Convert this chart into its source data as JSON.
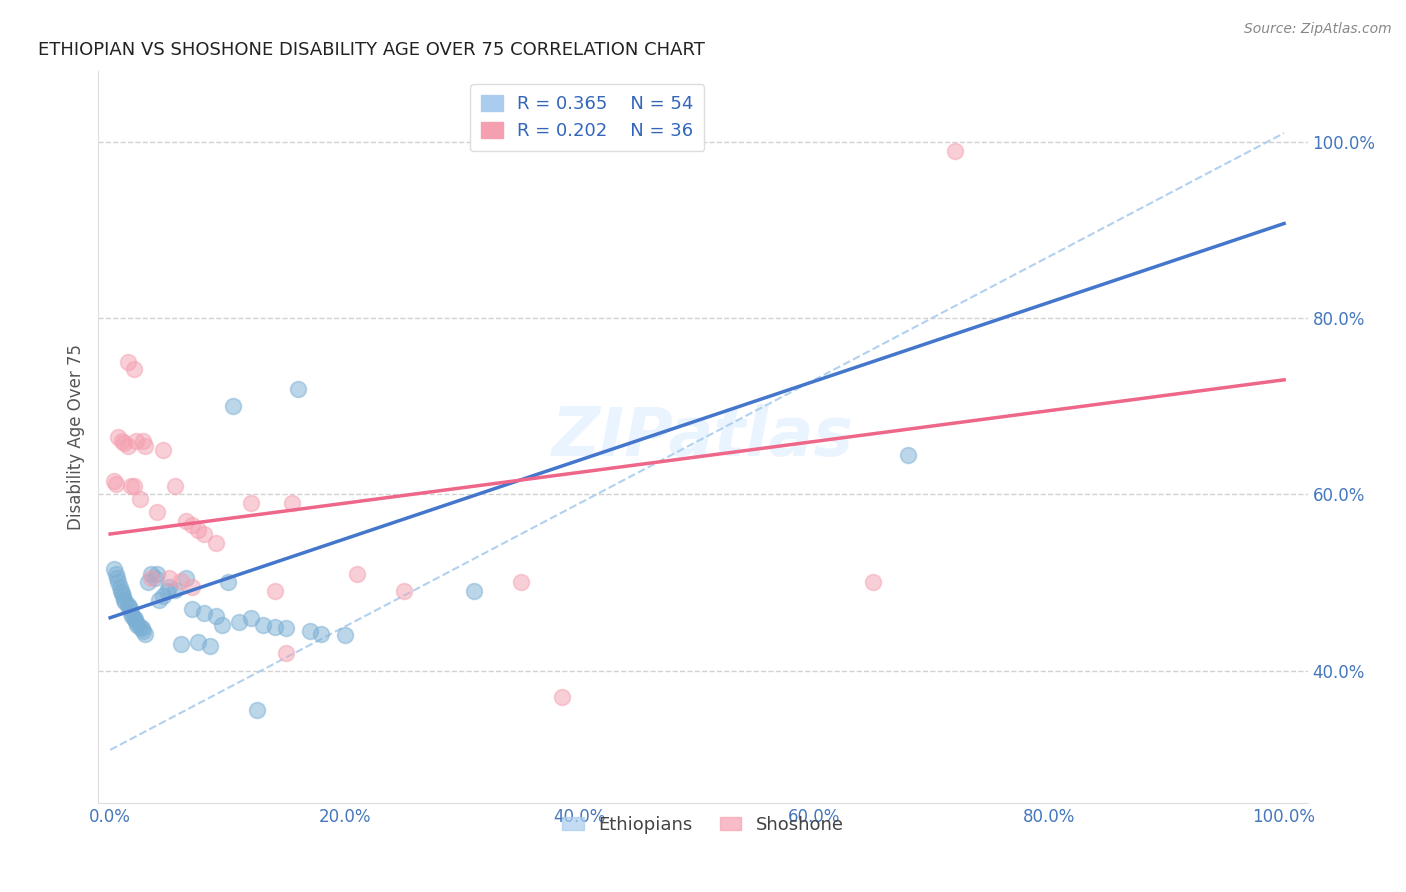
{
  "title": "ETHIOPIAN VS SHOSHONE DISABILITY AGE OVER 75 CORRELATION CHART",
  "source": "Source: ZipAtlas.com",
  "ylabel": "Disability Age Over 75",
  "legend_r1": "R = 0.365",
  "legend_n1": "N = 54",
  "legend_r2": "R = 0.202",
  "legend_n2": "N = 36",
  "blue_color": "#7BAFD4",
  "pink_color": "#F4A0B0",
  "blue_line_color": "#4477CC",
  "pink_line_color": "#EE6688",
  "dash_color": "#AACCEE",
  "xlim": [
    -0.01,
    1.02
  ],
  "ylim": [
    0.25,
    1.08
  ],
  "xticks": [
    0.0,
    0.2,
    0.4,
    0.6,
    0.8,
    1.0
  ],
  "yticks": [
    0.4,
    0.6,
    0.8,
    1.0
  ],
  "xticklabels": [
    "0.0%",
    "20.0%",
    "40.0%",
    "60.0%",
    "80.0%",
    "100.0%"
  ],
  "yticklabels": [
    "40.0%",
    "60.0%",
    "80.0%",
    "100.0%"
  ],
  "tick_color": "#4477BB",
  "watermark": "ZIPatlas",
  "blue_trendline": [
    0.0,
    0.46,
    0.38,
    0.63
  ],
  "pink_trendline": [
    0.0,
    0.555,
    1.0,
    0.73
  ],
  "dash_line": [
    0.0,
    0.31,
    1.0,
    1.01
  ],
  "eth_x": [
    0.003,
    0.005,
    0.006,
    0.007,
    0.008,
    0.009,
    0.01,
    0.011,
    0.012,
    0.013,
    0.015,
    0.016,
    0.017,
    0.018,
    0.019,
    0.02,
    0.021,
    0.022,
    0.023,
    0.025,
    0.027,
    0.028,
    0.03,
    0.032,
    0.035,
    0.038,
    0.04,
    0.042,
    0.045,
    0.048,
    0.05,
    0.055,
    0.06,
    0.065,
    0.07,
    0.075,
    0.08,
    0.085,
    0.09,
    0.095,
    0.1,
    0.11,
    0.12,
    0.13,
    0.14,
    0.15,
    0.16,
    0.17,
    0.18,
    0.2,
    0.105,
    0.31,
    0.125,
    0.68
  ],
  "eth_y": [
    0.515,
    0.51,
    0.505,
    0.5,
    0.495,
    0.49,
    0.488,
    0.485,
    0.48,
    0.478,
    0.475,
    0.472,
    0.47,
    0.465,
    0.462,
    0.46,
    0.458,
    0.455,
    0.452,
    0.45,
    0.448,
    0.445,
    0.442,
    0.5,
    0.51,
    0.505,
    0.51,
    0.48,
    0.485,
    0.49,
    0.495,
    0.492,
    0.43,
    0.505,
    0.47,
    0.432,
    0.465,
    0.428,
    0.462,
    0.452,
    0.5,
    0.455,
    0.46,
    0.452,
    0.45,
    0.448,
    0.72,
    0.445,
    0.442,
    0.44,
    0.7,
    0.49,
    0.355,
    0.645
  ],
  "sho_x": [
    0.003,
    0.005,
    0.007,
    0.01,
    0.012,
    0.015,
    0.018,
    0.02,
    0.022,
    0.025,
    0.028,
    0.03,
    0.035,
    0.04,
    0.045,
    0.05,
    0.055,
    0.06,
    0.065,
    0.07,
    0.075,
    0.08,
    0.09,
    0.12,
    0.14,
    0.015,
    0.02,
    0.155,
    0.21,
    0.25,
    0.35,
    0.72,
    0.15,
    0.385,
    0.65,
    0.07
  ],
  "sho_y": [
    0.615,
    0.612,
    0.665,
    0.66,
    0.658,
    0.655,
    0.61,
    0.61,
    0.66,
    0.595,
    0.66,
    0.655,
    0.505,
    0.58,
    0.65,
    0.505,
    0.61,
    0.502,
    0.57,
    0.565,
    0.56,
    0.555,
    0.545,
    0.59,
    0.49,
    0.75,
    0.742,
    0.59,
    0.51,
    0.49,
    0.5,
    0.99,
    0.42,
    0.37,
    0.5,
    0.495
  ]
}
